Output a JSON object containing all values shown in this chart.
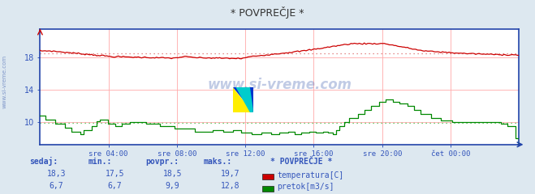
{
  "title": "* POVPREČJE *",
  "bg_color": "#dde8f0",
  "plot_bg_color": "#ffffff",
  "x_labels": [
    "sre 04:00",
    "sre 08:00",
    "sre 12:00",
    "sre 16:00",
    "sre 20:00",
    "čet 00:00"
  ],
  "ylim_min": 7.2,
  "ylim_max": 21.5,
  "y_ticks": [
    10,
    14,
    18
  ],
  "temp_color": "#cc0000",
  "flow_color": "#008800",
  "temp_avg": 18.5,
  "temp_min": 17.5,
  "temp_max": 19.7,
  "temp_last": 18.3,
  "flow_avg": 9.9,
  "flow_min": 6.7,
  "flow_max": 12.8,
  "flow_last": 6.7,
  "watermark": "www.si-vreme.com",
  "watermark_color": "#3355aa",
  "grid_color": "#ffcccc",
  "label_color": "#3355bb",
  "axis_color": "#2244aa",
  "dotted_color_temp": "#dd6666",
  "dotted_color_flow": "#44bb44",
  "n_points": 289
}
